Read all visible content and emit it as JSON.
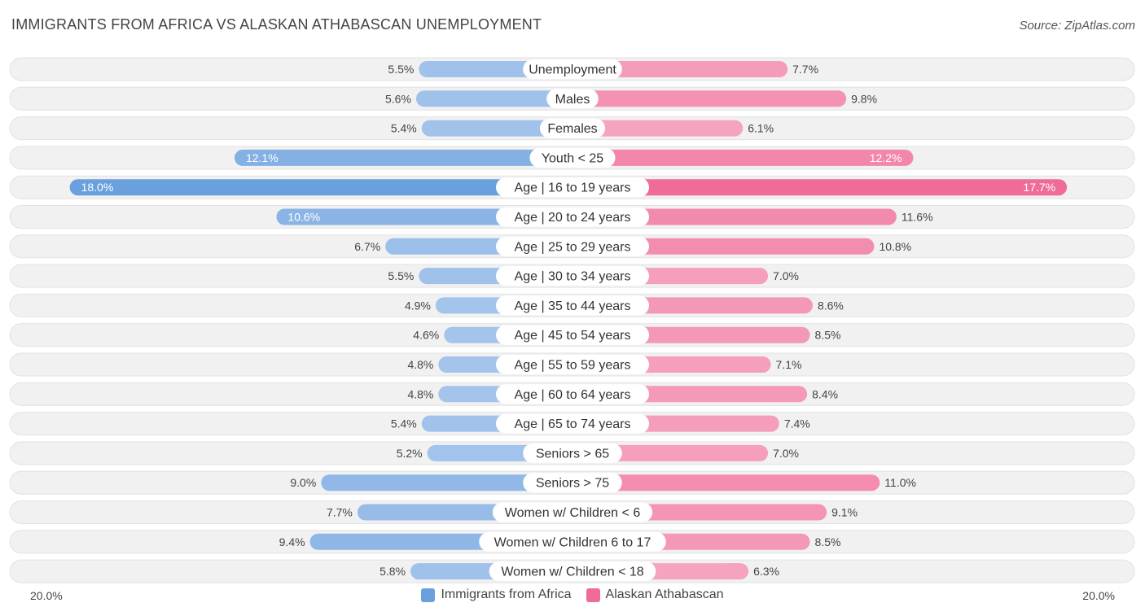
{
  "header": {
    "title": "IMMIGRANTS FROM AFRICA VS ALASKAN ATHABASCAN UNEMPLOYMENT",
    "source": "Source: ZipAtlas.com"
  },
  "colors": {
    "left_light": "#a7c6ec",
    "left_strong": "#6aa0dd",
    "right_light": "#f6a9c3",
    "right_strong": "#ef6b98",
    "row_bg": "#f1f1f1"
  },
  "legend": {
    "left": "Immigrants from Africa",
    "right": "Alaskan Athabascan"
  },
  "axis": {
    "left_label": "20.0%",
    "right_label": "20.0%"
  },
  "chart_data": {
    "type": "bar",
    "orientation": "horizontal-diverging",
    "title": "IMMIGRANTS FROM AFRICA VS ALASKAN ATHABASCAN UNEMPLOYMENT",
    "xlim": [
      -20,
      20
    ],
    "unit": "%",
    "categories": [
      "Unemployment",
      "Males",
      "Females",
      "Youth < 25",
      "Age | 16 to 19 years",
      "Age | 20 to 24 years",
      "Age | 25 to 29 years",
      "Age | 30 to 34 years",
      "Age | 35 to 44 years",
      "Age | 45 to 54 years",
      "Age | 55 to 59 years",
      "Age | 60 to 64 years",
      "Age | 65 to 74 years",
      "Seniors > 65",
      "Seniors > 75",
      "Women w/ Children < 6",
      "Women w/ Children 6 to 17",
      "Women w/ Children < 18"
    ],
    "series": [
      {
        "name": "Immigrants from Africa",
        "values": [
          5.5,
          5.6,
          5.4,
          12.1,
          18.0,
          10.6,
          6.7,
          5.5,
          4.9,
          4.6,
          4.8,
          4.8,
          5.4,
          5.2,
          9.0,
          7.7,
          9.4,
          5.8
        ],
        "labels": [
          "5.5%",
          "5.6%",
          "5.4%",
          "12.1%",
          "18.0%",
          "10.6%",
          "6.7%",
          "5.5%",
          "4.9%",
          "4.6%",
          "4.8%",
          "4.8%",
          "5.4%",
          "5.2%",
          "9.0%",
          "7.7%",
          "9.4%",
          "5.8%"
        ]
      },
      {
        "name": "Alaskan Athabascan",
        "values": [
          7.7,
          9.8,
          6.1,
          12.2,
          17.7,
          11.6,
          10.8,
          7.0,
          8.6,
          8.5,
          7.1,
          8.4,
          7.4,
          7.0,
          11.0,
          9.1,
          8.5,
          6.3
        ],
        "labels": [
          "7.7%",
          "9.8%",
          "6.1%",
          "12.2%",
          "17.7%",
          "11.6%",
          "10.8%",
          "7.0%",
          "8.6%",
          "8.5%",
          "7.1%",
          "8.4%",
          "7.4%",
          "7.0%",
          "11.0%",
          "9.1%",
          "8.5%",
          "6.3%"
        ]
      }
    ]
  }
}
